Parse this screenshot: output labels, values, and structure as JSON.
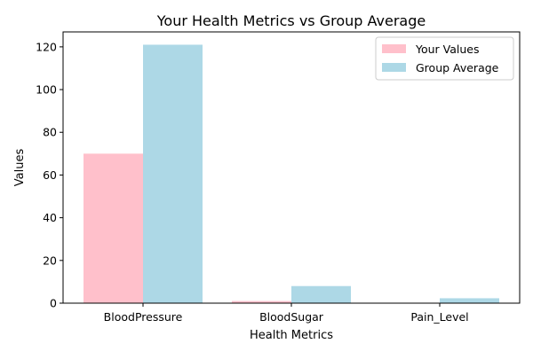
{
  "chart_data": {
    "type": "bar",
    "title": "Your Health Metrics vs Group Average",
    "xlabel": "Health Metrics",
    "ylabel": "Values",
    "categories": [
      "BloodPressure",
      "BloodSugar",
      "Pain_Level"
    ],
    "series": [
      {
        "name": "Your Values",
        "values": [
          70,
          1,
          0
        ],
        "color": "#ffc0cb"
      },
      {
        "name": "Group Average",
        "values": [
          121,
          8,
          2.3
        ],
        "color": "#add8e6"
      }
    ],
    "ylim": [
      0,
      127
    ],
    "yticks": [
      0,
      20,
      40,
      60,
      80,
      100,
      120
    ],
    "grid": false,
    "legend_position": "top-right"
  }
}
